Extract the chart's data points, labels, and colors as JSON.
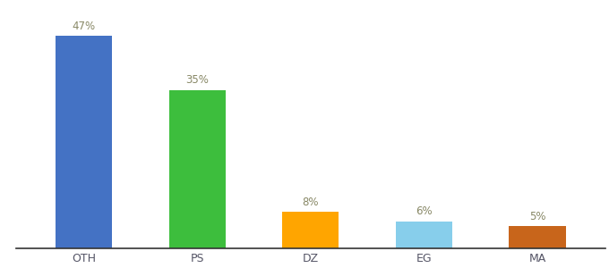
{
  "categories": [
    "OTH",
    "PS",
    "DZ",
    "EG",
    "MA"
  ],
  "values": [
    47,
    35,
    8,
    6,
    5
  ],
  "labels": [
    "47%",
    "35%",
    "8%",
    "6%",
    "5%"
  ],
  "bar_colors": [
    "#4472C4",
    "#3DBE3D",
    "#FFA500",
    "#87CEEB",
    "#C8651B"
  ],
  "ylim": [
    0,
    54
  ],
  "background_color": "#ffffff",
  "label_fontsize": 8.5,
  "tick_fontsize": 9,
  "bar_width": 0.5
}
